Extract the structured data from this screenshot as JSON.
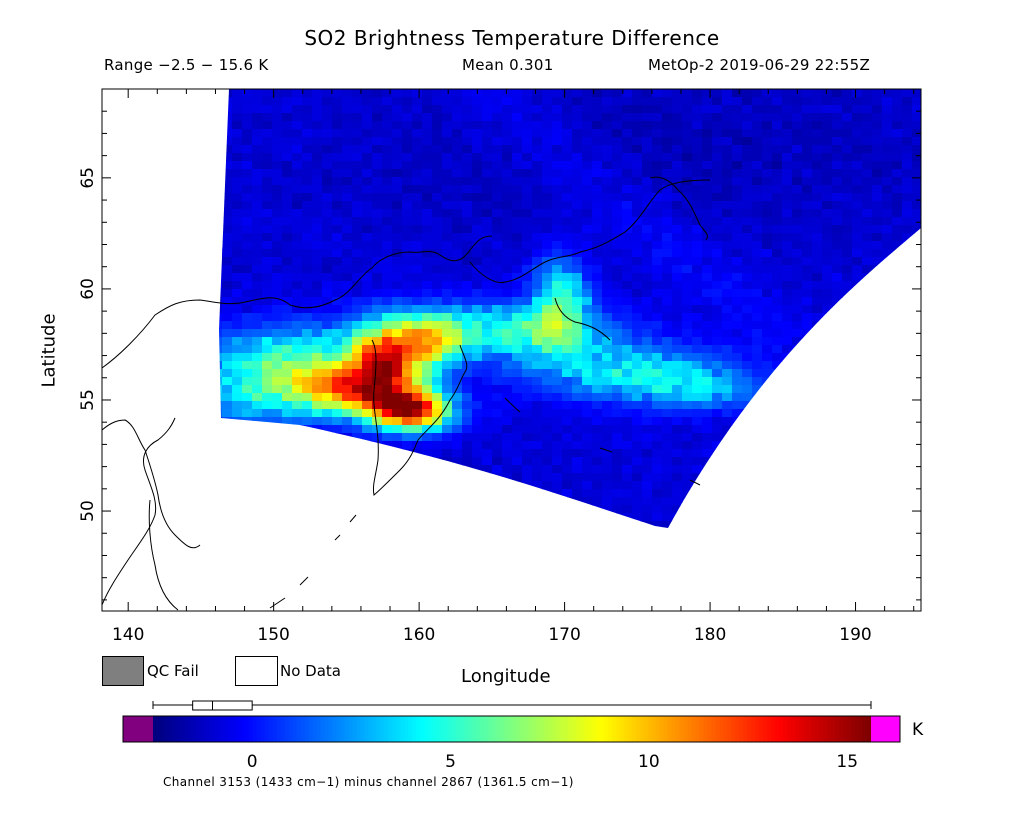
{
  "header": {
    "title": "SO2 Brightness Temperature Difference",
    "range": "Range −2.5 − 15.6 K",
    "mean": "Mean 0.301",
    "satellite_time": "MetOp-2 2019-06-29 22:55Z"
  },
  "map": {
    "xlabel": "Longitude",
    "ylabel": "Latitude",
    "xlim": [
      138.2,
      194.5
    ],
    "ylim": [
      45.5,
      69.0
    ],
    "x_ticks": [
      140,
      150,
      160,
      170,
      180,
      190
    ],
    "y_ticks": [
      50,
      55,
      60,
      65
    ],
    "plume_peak": {
      "lon": 159.5,
      "lat": 54.5
    }
  },
  "legend": {
    "qc_fail": "QC Fail",
    "no_data": "No Data",
    "qc_fail_color": "#7f7f7f",
    "no_data_color": "#ffffff"
  },
  "colorbar": {
    "min": -2.5,
    "max": 15.6,
    "tick_labels": [
      0,
      5,
      10,
      15
    ],
    "unit": "K",
    "below_range_color": "#800080",
    "above_range_color": "#ff00ff",
    "box_whisker": {
      "min": -2.5,
      "q1": -1.5,
      "median": -1.0,
      "q3": 0.0,
      "max": 15.6
    }
  },
  "footnote": "Channel 3153 (1433 cm−1) minus channel 2867 (1361.5 cm−1)"
}
